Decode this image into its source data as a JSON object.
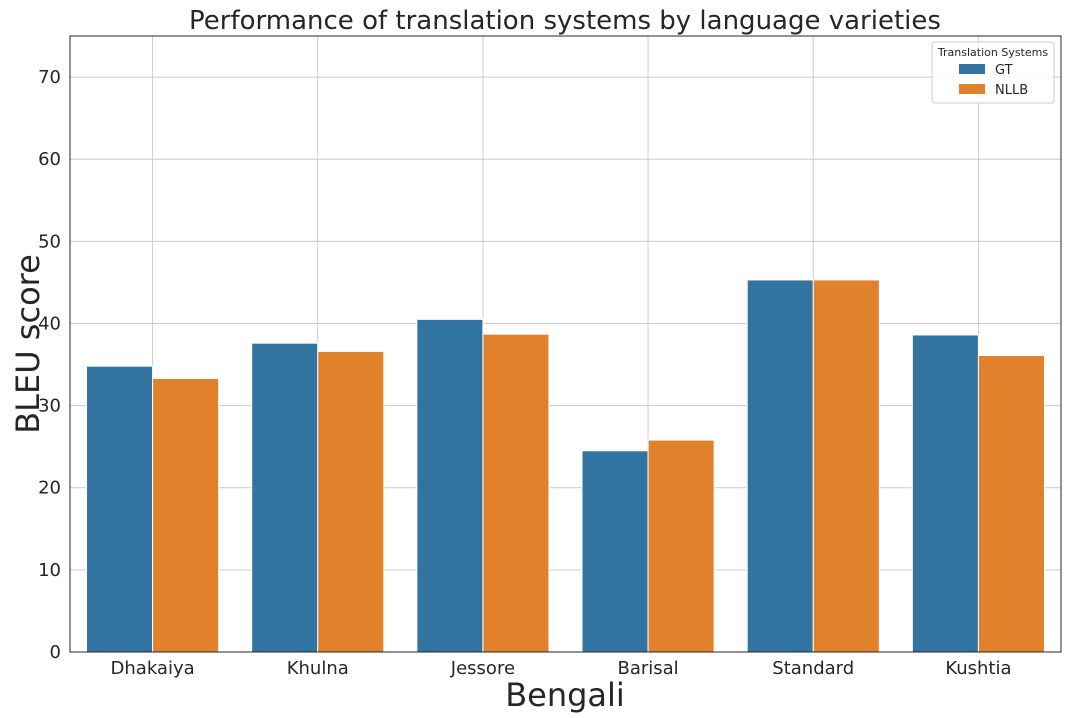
{
  "chart_data": {
    "type": "bar",
    "title": "Performance of translation systems by language varieties",
    "xlabel": "Bengali",
    "ylabel": "BLEU score",
    "categories": [
      "Dhakaiya",
      "Khulna",
      "Jessore",
      "Barisal",
      "Standard",
      "Kushtia"
    ],
    "series": [
      {
        "name": "GT",
        "color": "#3274a1",
        "values": [
          34.8,
          37.6,
          40.5,
          24.5,
          45.3,
          38.6
        ]
      },
      {
        "name": "NLLB",
        "color": "#e1812c",
        "values": [
          33.3,
          36.6,
          38.7,
          25.8,
          45.3,
          36.1
        ]
      }
    ],
    "ylim": [
      0,
      75
    ],
    "yticks": [
      0,
      10,
      20,
      30,
      40,
      50,
      60,
      70
    ],
    "grid": true,
    "legend": {
      "title": "Translation Systems",
      "placement": "top-right"
    }
  }
}
